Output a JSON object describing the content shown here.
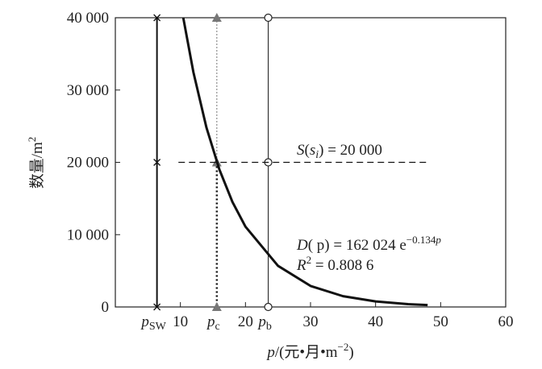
{
  "chart_data": {
    "type": "line",
    "y_label": [
      "数量/m",
      "2"
    ],
    "x_label": [
      "p",
      "/(元•月•m",
      "−2",
      ")"
    ],
    "xlim": [
      0,
      60
    ],
    "xticks": [
      10,
      20,
      30,
      40,
      50,
      60
    ],
    "ylim": [
      0,
      40000
    ],
    "yticks": [
      0,
      {
        "value": 10000,
        "label": "10 000"
      },
      {
        "value": 20000,
        "label": "20 000"
      },
      {
        "value": 30000,
        "label": "30 000"
      },
      {
        "value": 40000,
        "label": "40 000"
      }
    ],
    "series": [
      {
        "name": "D(p)",
        "color": "#111",
        "x": [
          10.44,
          12,
          14,
          16,
          18,
          20,
          25,
          30,
          35,
          40,
          45,
          48
        ],
        "values": [
          40000,
          32460,
          24820,
          18990,
          14520,
          11110,
          5690,
          2910,
          1490,
          762,
          390,
          261
        ]
      }
    ],
    "reference_lines": [
      {
        "symbol": "p",
        "subscript": "SW",
        "x": 6.4,
        "marker": "x"
      },
      {
        "symbol": "p",
        "subscript": "c",
        "x": 15.6,
        "marker": "triangle"
      },
      {
        "symbol": "p",
        "subscript": "b",
        "x": 23.5,
        "marker": "circle"
      }
    ],
    "marker_values": [
      0,
      20000,
      40000
    ],
    "supply_line": {
      "y": 20000,
      "x": [
        9.7,
        48
      ],
      "label": [
        "S",
        "(",
        "s",
        "i",
        ") = 20 000"
      ]
    },
    "equation": [
      "D",
      "( p) = 162 024 e",
      "−0.134",
      "p"
    ],
    "r_squared": [
      "R",
      "2",
      " = 0.808 6"
    ]
  }
}
